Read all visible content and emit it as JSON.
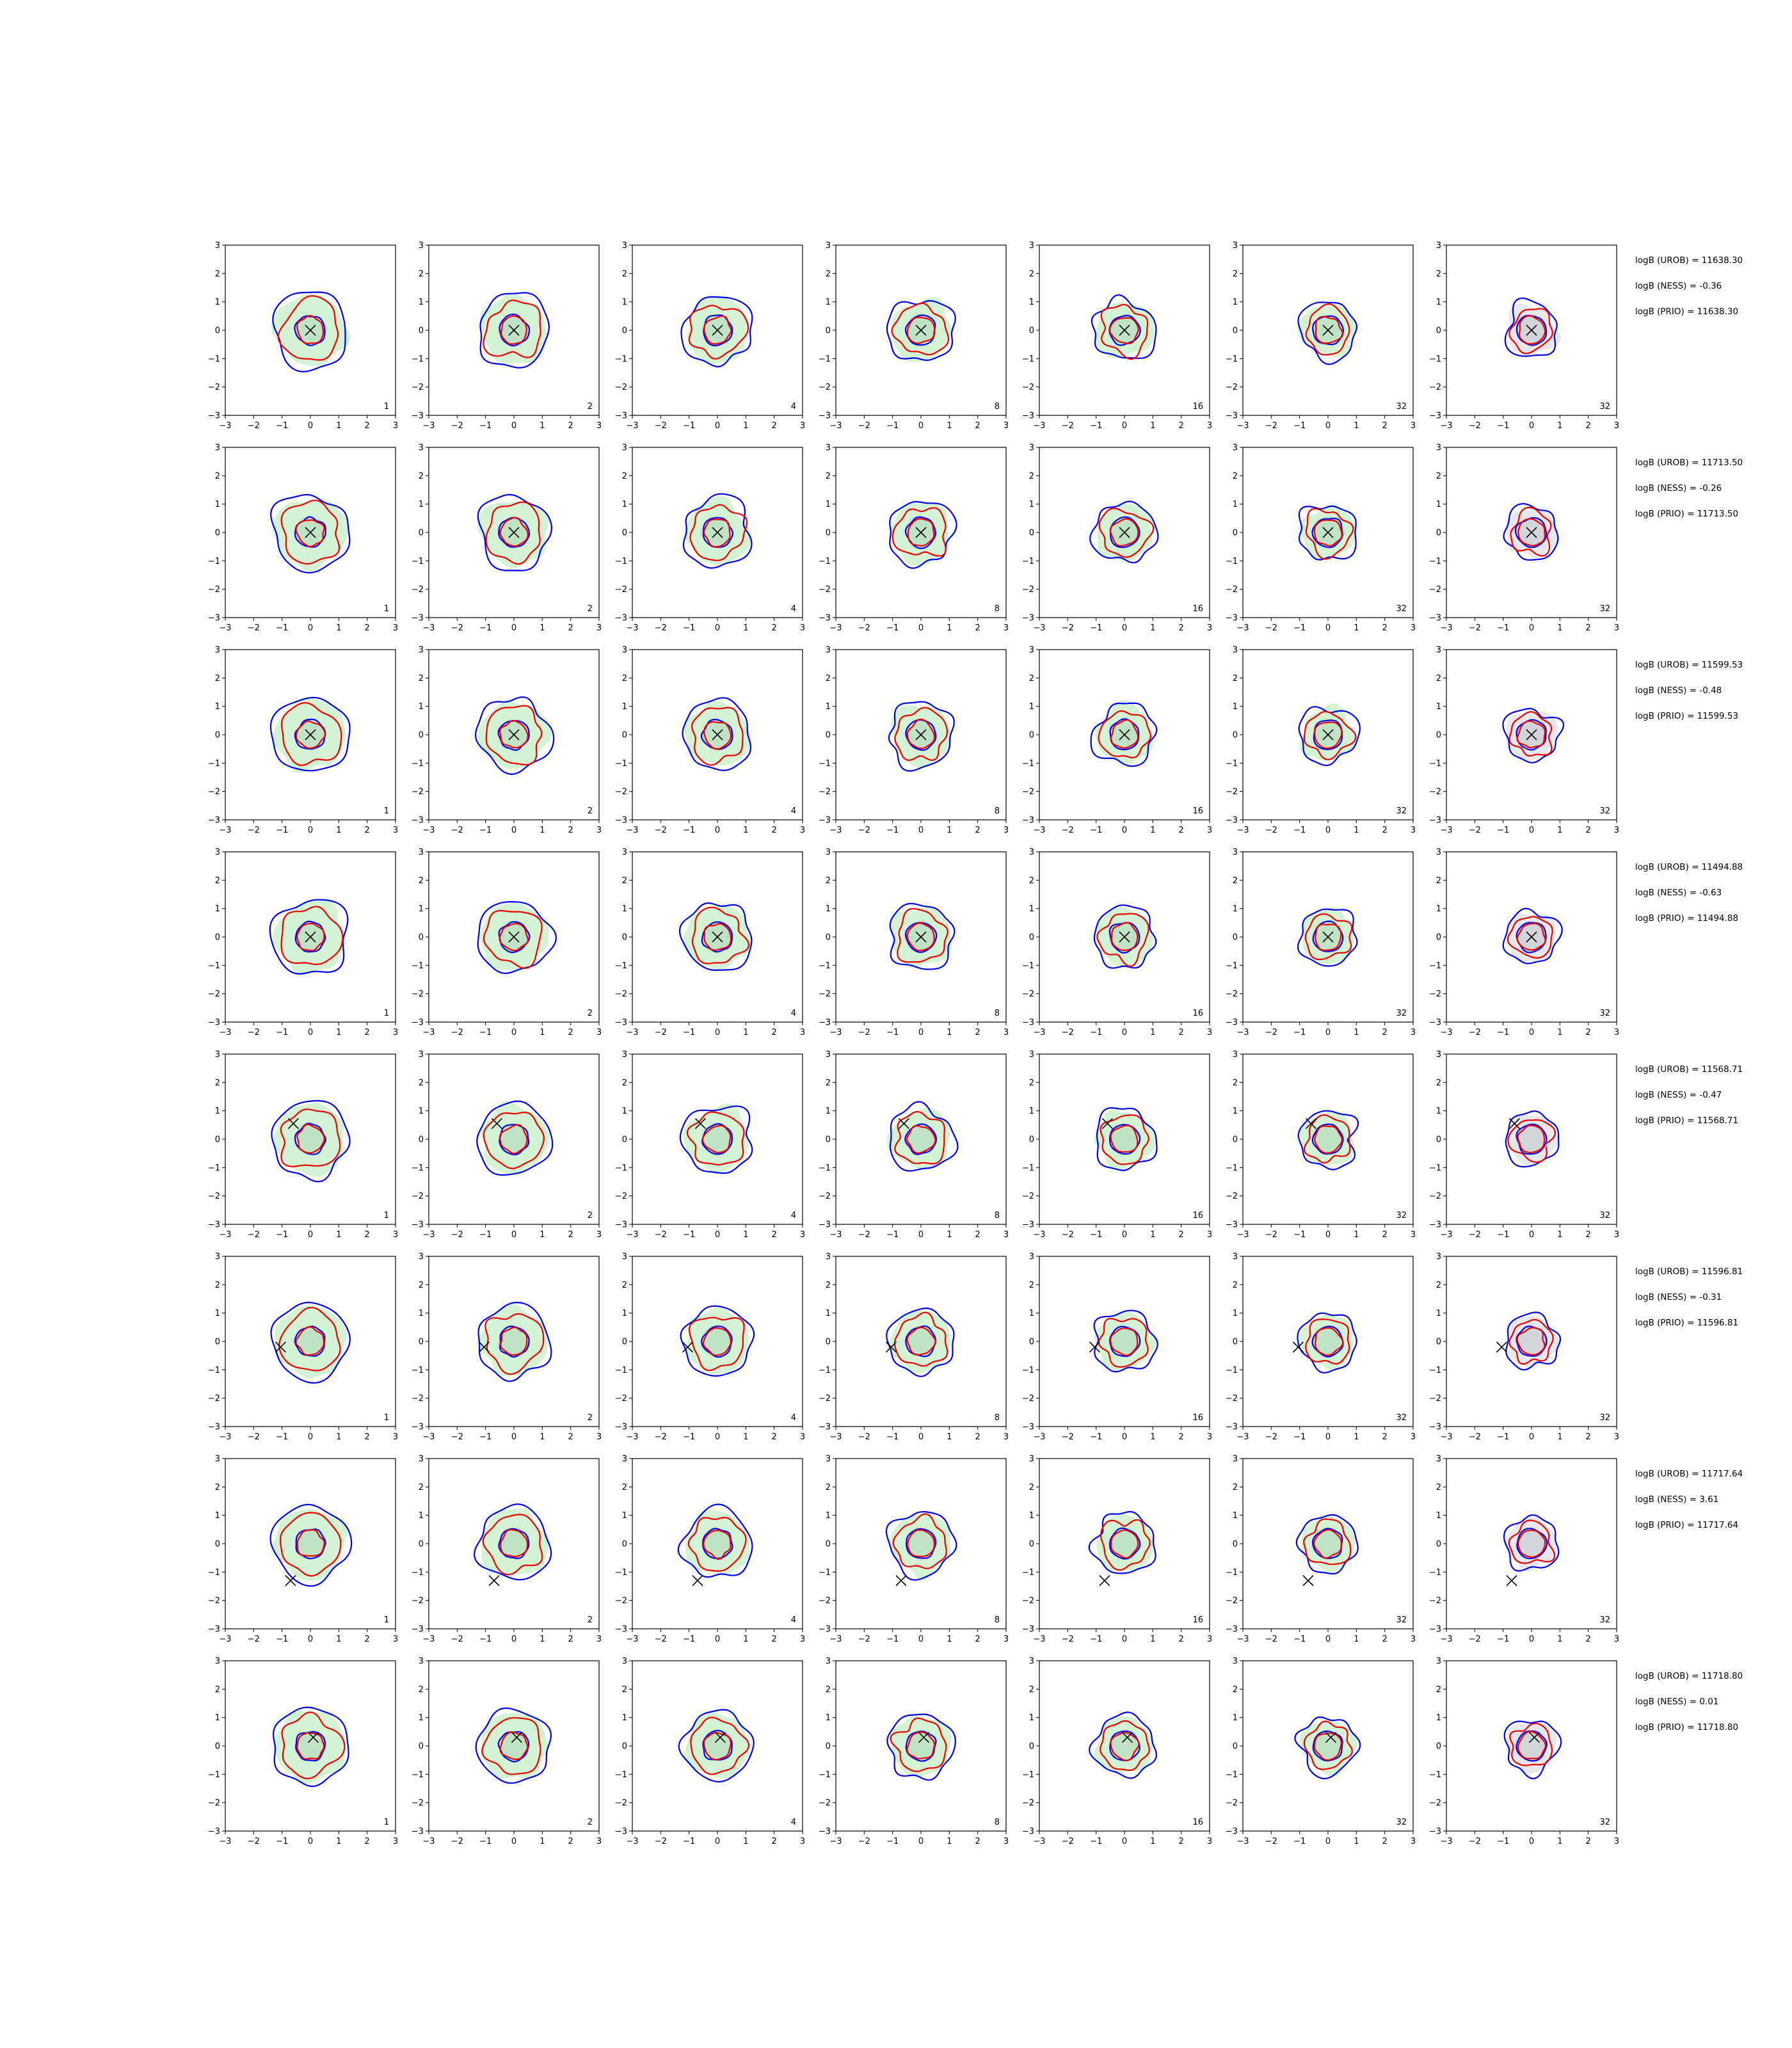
{
  "chart_data": {
    "type": "contour-grid",
    "xlim": [
      -3,
      3
    ],
    "ylim": [
      -3,
      3
    ],
    "ticks": [
      "−3",
      "−2",
      "−1",
      "0",
      "1",
      "2",
      "3"
    ],
    "colors": {
      "density_fill": "#d4f3d4",
      "prior_fill": "#e8e8ec",
      "blue_contour": "#0000ee",
      "red_contour": "#ee0000",
      "truth_marker": "#000000"
    },
    "panel_labels": [
      "1",
      "2",
      "4",
      "8",
      "16",
      "32",
      "32"
    ],
    "rows": [
      {
        "truth": [
          0.0,
          0.0
        ],
        "annotations": [
          "logB (UROB) = 11638.30",
          "logB (NESS) = -0.36",
          "logB (PRIO) = 11638.30"
        ]
      },
      {
        "truth": [
          0.0,
          0.0
        ],
        "annotations": [
          "logB (UROB) = 11713.50",
          "logB (NESS) = -0.26",
          "logB (PRIO) = 11713.50"
        ]
      },
      {
        "truth": [
          0.0,
          0.0
        ],
        "annotations": [
          "logB (UROB) = 11599.53",
          "logB (NESS) = -0.48",
          "logB (PRIO) = 11599.53"
        ]
      },
      {
        "truth": [
          0.0,
          0.0
        ],
        "annotations": [
          "logB (UROB) = 11494.88",
          "logB (NESS) = -0.63",
          "logB (PRIO) = 11494.88"
        ]
      },
      {
        "truth": [
          -0.6,
          0.55
        ],
        "annotations": [
          "logB (UROB) = 11568.71",
          "logB (NESS) = -0.47",
          "logB (PRIO) = 11568.71"
        ]
      },
      {
        "truth": [
          -1.05,
          -0.2
        ],
        "annotations": [
          "logB (UROB) = 11596.81",
          "logB (NESS) = -0.31",
          "logB (PRIO) = 11596.81"
        ]
      },
      {
        "truth": [
          -0.7,
          -1.3
        ],
        "annotations": [
          "logB (UROB) = 11717.64",
          "logB (NESS) = 3.61",
          "logB (PRIO) = 11717.64"
        ]
      },
      {
        "truth": [
          0.1,
          0.3
        ],
        "annotations": [
          "logB (UROB) = 11718.80",
          "logB (NESS) = 0.01",
          "logB (PRIO) = 11718.80"
        ]
      }
    ]
  }
}
